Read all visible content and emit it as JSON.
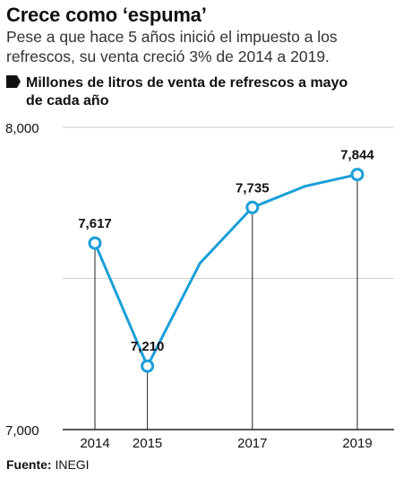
{
  "header": {
    "title": "Crece como ‘espuma’",
    "subtitle": "Pese a que hace 5 años inició el impuesto a los refrescos, su venta creció 3% de 2014 a 2019.",
    "chart_heading_line1": "Millones de litros de venta de refrescos a mayo",
    "chart_heading_line2": "de cada año"
  },
  "footer": {
    "source_label": "Fuente:",
    "source_value": "INEGI"
  },
  "colors": {
    "line": "#1a9fd9",
    "marker_fill": "#ffffff",
    "grid": "#cfcfcf",
    "axis": "#222222",
    "text": "#111111"
  },
  "chart_data": {
    "type": "line",
    "title": "Millones de litros de venta de refrescos a mayo de cada año",
    "xlabel": "",
    "ylabel": "",
    "ylim": [
      7000,
      8000
    ],
    "y_ticks": [
      7000,
      7500,
      8000
    ],
    "y_tick_labels": [
      "7,000",
      "",
      "8,000"
    ],
    "x_tick_labels": [
      "2014",
      "2015",
      "2017",
      "2019"
    ],
    "grid": true,
    "series": [
      {
        "x": [
          2014,
          2015,
          2016,
          2017,
          2018,
          2019
        ],
        "y": [
          7617,
          7210,
          7550,
          7735,
          7805,
          7844
        ],
        "labeled_points": [
          {
            "x": 2014,
            "y": 7617,
            "label": "7,617",
            "position": "above"
          },
          {
            "x": 2015,
            "y": 7210,
            "label": "7,210",
            "position": "above"
          },
          {
            "x": 2017,
            "y": 7735,
            "label": "7,735",
            "position": "above"
          },
          {
            "x": 2019,
            "y": 7844,
            "label": "7,844",
            "position": "above"
          }
        ]
      }
    ]
  }
}
